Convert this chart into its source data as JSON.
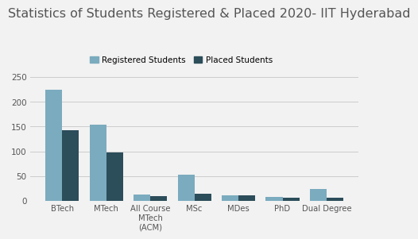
{
  "title": "Statistics of Students Registered & Placed 2020- IIT Hyderabad",
  "categories": [
    "BTech",
    "MTech",
    "All Course\nMTech\n(ACM)",
    "MSc",
    "MDes",
    "PhD",
    "Dual Degree"
  ],
  "registered": [
    224,
    153,
    12,
    52,
    11,
    8,
    24
  ],
  "placed": [
    142,
    97,
    9,
    14,
    11,
    7,
    6
  ],
  "registered_color": "#7BABBE",
  "placed_color": "#2C4D5A",
  "background_color": "#F2F2F2",
  "title_fontsize": 11.5,
  "legend_labels": [
    "Registered Students",
    "Placed Students"
  ],
  "ylim": [
    0,
    260
  ],
  "yticks": [
    0,
    50,
    100,
    150,
    200,
    250
  ],
  "bar_width": 0.38,
  "grid_color": "#CCCCCC"
}
